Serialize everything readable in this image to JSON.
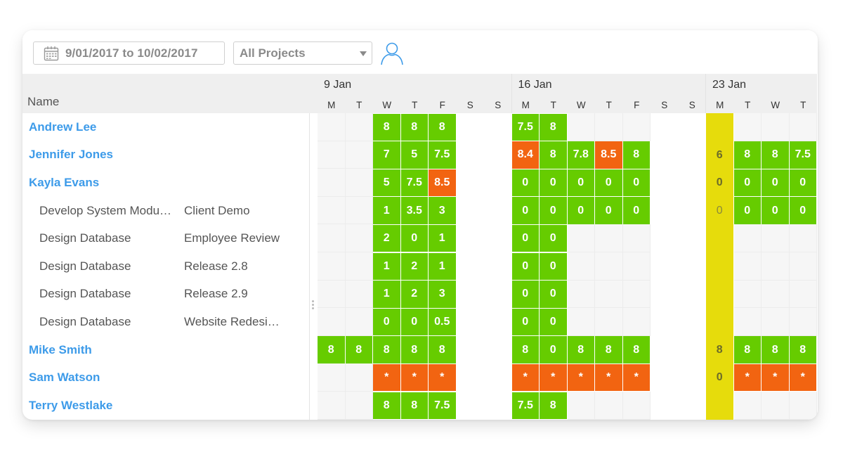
{
  "toolbar": {
    "date_range": "9/01/2017 to 10/02/2017",
    "project_filter": "All Projects",
    "icons": [
      "calendar-icon",
      "chevron-down-icon",
      "user-icon"
    ],
    "accent_color": "#3d9be9"
  },
  "name_header": "Name",
  "colors": {
    "green": "#66cc00",
    "orange": "#f26411",
    "yellow": "#e6dc0c",
    "name_blue": "#3d9be9"
  },
  "weeks": [
    {
      "label": "9 Jan",
      "days": [
        "M",
        "T",
        "W",
        "T",
        "F",
        "S",
        "S"
      ]
    },
    {
      "label": "16 Jan",
      "days": [
        "M",
        "T",
        "W",
        "T",
        "F",
        "S",
        "S"
      ]
    },
    {
      "label": "23 Jan",
      "days": [
        "M",
        "T",
        "W",
        "T"
      ]
    }
  ],
  "rows": [
    {
      "type": "person",
      "name": "Andrew Lee",
      "cells": [
        "e",
        "e",
        "g:8",
        "g:8",
        "g:8",
        "w",
        "w",
        "g:7.5",
        "g:8",
        "e",
        "e",
        "e",
        "w",
        "w",
        "y:",
        "e",
        "e",
        "e"
      ]
    },
    {
      "type": "person",
      "name": "Jennifer Jones",
      "cells": [
        "e",
        "e",
        "g:7",
        "g:5",
        "g:7.5",
        "w",
        "w",
        "o:8.4",
        "g:8",
        "g:7.8",
        "o:8.5",
        "g:8",
        "w",
        "w",
        "y:6",
        "g:8",
        "g:8",
        "g:7.5"
      ]
    },
    {
      "type": "person",
      "name": "Kayla Evans",
      "cells": [
        "e",
        "e",
        "g:5",
        "g:7.5",
        "o:8.5",
        "w",
        "w",
        "g:0",
        "g:0",
        "g:0",
        "g:0",
        "g:0",
        "w",
        "w",
        "y:0",
        "g:0",
        "g:0",
        "g:0"
      ]
    },
    {
      "type": "task",
      "task": "Develop System Modu…",
      "project": "Client Demo",
      "cells": [
        "e",
        "e",
        "g:1",
        "g:3.5",
        "g:3",
        "w",
        "w",
        "g:0",
        "g:0",
        "g:0",
        "g:0",
        "g:0",
        "w",
        "w",
        "yt:0",
        "g:0",
        "g:0",
        "g:0"
      ]
    },
    {
      "type": "task",
      "task": "Design Database",
      "project": "Employee Review",
      "cells": [
        "e",
        "e",
        "g:2",
        "g:0",
        "g:1",
        "w",
        "w",
        "g:0",
        "g:0",
        "e",
        "e",
        "e",
        "w",
        "w",
        "y:",
        "e",
        "e",
        "e"
      ]
    },
    {
      "type": "task",
      "task": "Design Database",
      "project": "Release 2.8",
      "cells": [
        "e",
        "e",
        "g:1",
        "g:2",
        "g:1",
        "w",
        "w",
        "g:0",
        "g:0",
        "e",
        "e",
        "e",
        "w",
        "w",
        "y:",
        "e",
        "e",
        "e"
      ]
    },
    {
      "type": "task",
      "task": "Design Database",
      "project": "Release 2.9",
      "cells": [
        "e",
        "e",
        "g:1",
        "g:2",
        "g:3",
        "w",
        "w",
        "g:0",
        "g:0",
        "e",
        "e",
        "e",
        "w",
        "w",
        "y:",
        "e",
        "e",
        "e"
      ]
    },
    {
      "type": "task",
      "task": "Design Database",
      "project": "Website Redesi…",
      "cells": [
        "e",
        "e",
        "g:0",
        "g:0",
        "g:0.5",
        "w",
        "w",
        "g:0",
        "g:0",
        "e",
        "e",
        "e",
        "w",
        "w",
        "y:",
        "e",
        "e",
        "e"
      ]
    },
    {
      "type": "person",
      "name": "Mike Smith",
      "cells": [
        "g:8",
        "g:8",
        "g:8",
        "g:8",
        "g:8",
        "w",
        "w",
        "g:8",
        "g:0",
        "g:8",
        "g:8",
        "g:8",
        "w",
        "w",
        "y:8",
        "g:8",
        "g:8",
        "g:8"
      ]
    },
    {
      "type": "person",
      "name": "Sam Watson",
      "cells": [
        "e",
        "e",
        "o:*",
        "o:*",
        "o:*",
        "w",
        "w",
        "o:*",
        "o:*",
        "o:*",
        "o:*",
        "o:*",
        "w",
        "w",
        "y:0",
        "o:*",
        "o:*",
        "o:*"
      ]
    },
    {
      "type": "person",
      "name": "Terry Westlake",
      "cells": [
        "e",
        "e",
        "g:8",
        "g:8",
        "g:7.5",
        "w",
        "w",
        "g:7.5",
        "g:8",
        "e",
        "e",
        "e",
        "w",
        "w",
        "y:",
        "e",
        "e",
        "e"
      ]
    }
  ]
}
